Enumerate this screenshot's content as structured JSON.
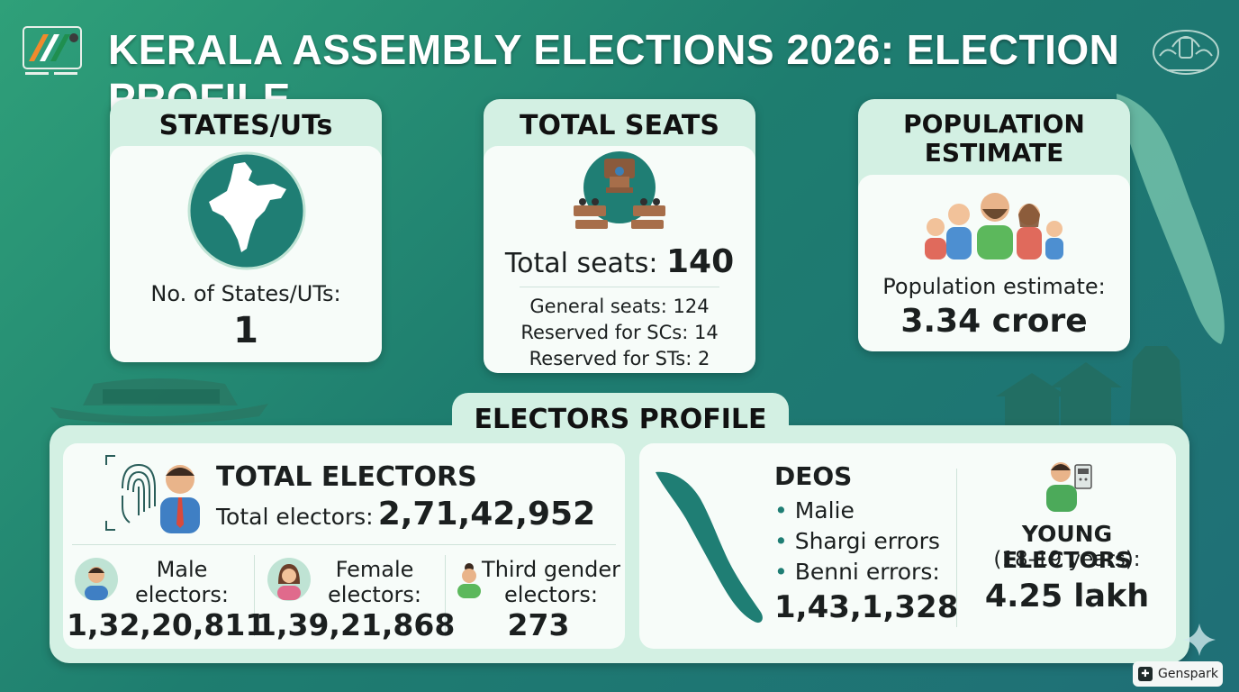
{
  "title": "KERALA ASSEMBLY ELECTIONS 2026: ELECTION PROFILE",
  "states_card": {
    "heading": "STATES/UTs",
    "label": "No. of States/UTs:",
    "value": "1"
  },
  "seats_card": {
    "heading": "TOTAL SEATS",
    "total_label": "Total seats:",
    "total_value": "140",
    "general": "General seats: 124",
    "sc": "Reserved for SCs: 14",
    "st": "Reserved for STs: 2"
  },
  "population_card": {
    "heading_line1": "POPULATION",
    "heading_line2": "ESTIMATE",
    "label": "Population estimate:",
    "value": "3.34 crore"
  },
  "electors_profile": {
    "heading": "ELECTORS PROFILE",
    "total_heading": "TOTAL ELECTORS",
    "total_label": "Total electors:",
    "total_value": "2,71,42,952",
    "male_line1": "Male",
    "male_line2": "electors:",
    "male_value": "1,32,20,811",
    "female_line1": "Female",
    "female_line2": "electors:",
    "female_value": "1,39,21,868",
    "third_line1": "Third gender",
    "third_line2": "electors:",
    "third_value": "273"
  },
  "deos": {
    "heading": "DEOS",
    "items": [
      "Malie",
      "Shargi errors",
      "Benni errors:"
    ],
    "value": "1,43,1,328"
  },
  "young_electors": {
    "heading": "YOUNG ELECTORS",
    "sub": "(18-19 years):",
    "value": "4.25 lakh"
  },
  "watermark": "Genspark",
  "colors": {
    "background_start": "#2fa079",
    "background_end": "#1f6f77",
    "card_outer": "#d3f0e3",
    "card_inner": "#f7fcf9",
    "map_teal": "#1f7e74"
  }
}
